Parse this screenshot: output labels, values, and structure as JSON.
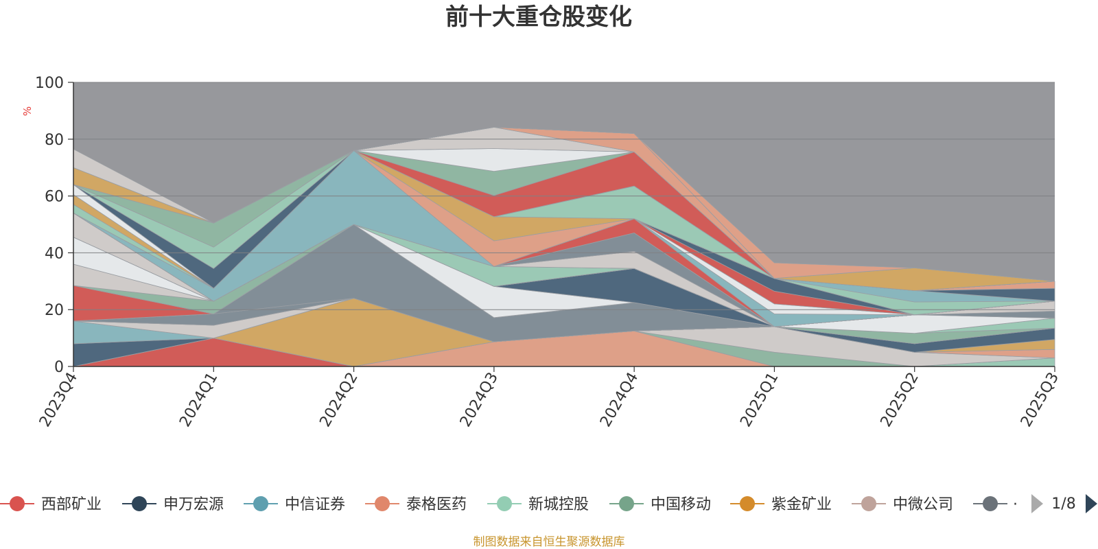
{
  "chart_data": {
    "type": "area",
    "stacked": true,
    "title": "前十大重仓股变化",
    "ylabel": "%",
    "ylim": [
      0,
      100
    ],
    "yticks": [
      0,
      20,
      40,
      60,
      80,
      100
    ],
    "grid": true,
    "legend_position": "bottom",
    "categories": [
      "2023Q4",
      "2024Q1",
      "2024Q2",
      "2024Q3",
      "2024Q4",
      "2025Q1",
      "2025Q2",
      "2025Q3"
    ],
    "series": [
      {
        "name": "西部矿业",
        "color": "#d9534f",
        "values": [
          0,
          10,
          0,
          0,
          0,
          0,
          0,
          0
        ]
      },
      {
        "name": "",
        "color": "#e8a085",
        "values": [
          0,
          0,
          0,
          8.7,
          12.5,
          0,
          0,
          0
        ]
      },
      {
        "name": "",
        "color": "#9ccfb8",
        "values": [
          0,
          0,
          0,
          0,
          0,
          0,
          0,
          3
        ]
      },
      {
        "name": "",
        "color": "#8fbaa3",
        "values": [
          0,
          0,
          0,
          0,
          0,
          5,
          0,
          0
        ]
      },
      {
        "name": "",
        "color": "#d7d1cf",
        "values": [
          0,
          0,
          0,
          0,
          0,
          9,
          5,
          0
        ]
      },
      {
        "name": "",
        "color": "#e8a085",
        "values": [
          0,
          0,
          0,
          0,
          0,
          0,
          0,
          3
        ]
      },
      {
        "name": "",
        "color": "#d9a85c",
        "values": [
          0,
          0,
          24,
          0,
          0,
          0,
          0,
          3.5
        ]
      },
      {
        "name": "",
        "color": "#46617a",
        "values": [
          8,
          0,
          0,
          0,
          0,
          0,
          3,
          4
        ]
      },
      {
        "name": "",
        "color": "#88b9c1",
        "values": [
          8,
          0,
          0,
          0,
          0,
          0,
          0,
          0
        ]
      },
      {
        "name": "",
        "color": "#8fbaa3",
        "values": [
          0,
          0,
          0,
          0,
          0,
          0,
          3.7,
          0
        ]
      },
      {
        "name": "",
        "color": "#9ccfb8",
        "values": [
          0,
          0,
          0,
          0,
          0,
          0,
          0,
          3.5
        ]
      },
      {
        "name": "",
        "color": "#d7d1cf",
        "values": [
          0,
          4.5,
          0,
          0,
          0,
          0,
          0,
          0
        ]
      },
      {
        "name": "",
        "color": "#f0f2f5",
        "values": [
          0,
          0,
          0,
          0,
          0,
          0,
          6.5,
          0
        ]
      },
      {
        "name": "",
        "color": "#7f8c96",
        "values": [
          0,
          4,
          0,
          0,
          0,
          0,
          0,
          2.5
        ]
      },
      {
        "name": "",
        "color": "#7f8c96",
        "values": [
          0,
          0,
          26,
          8.5,
          10,
          0,
          0,
          0
        ]
      },
      {
        "name": "",
        "color": "#d9534f",
        "values": [
          12.5,
          0,
          0,
          0,
          0,
          0,
          0,
          0
        ]
      },
      {
        "name": "",
        "color": "#e8a085",
        "values": [
          0,
          0,
          0,
          0,
          0,
          0,
          0,
          0
        ]
      },
      {
        "name": "",
        "color": "#d7d1cf",
        "values": [
          0,
          0,
          0,
          0,
          0,
          0,
          0,
          3.5
        ]
      },
      {
        "name": "",
        "color": "#f0f2f5",
        "values": [
          0,
          0,
          0,
          11,
          0,
          0,
          0,
          0
        ]
      },
      {
        "name": "",
        "color": "#46617a",
        "values": [
          0,
          0,
          0,
          0,
          12,
          0,
          0,
          0
        ]
      },
      {
        "name": "",
        "color": "#8fbaa3",
        "values": [
          0,
          4.5,
          0,
          0,
          0,
          0,
          0,
          0
        ]
      },
      {
        "name": "",
        "color": "#d7d1cf",
        "values": [
          7.5,
          0,
          0,
          0,
          0,
          0,
          0,
          0
        ]
      },
      {
        "name": "",
        "color": "#9ccfb8",
        "values": [
          0,
          0,
          0,
          7,
          0,
          0,
          0,
          0
        ]
      },
      {
        "name": "",
        "color": "#f0f2f5",
        "values": [
          9.5,
          0,
          0,
          0,
          0,
          0,
          0,
          0
        ]
      },
      {
        "name": "",
        "color": "#d7d1cf",
        "values": [
          0,
          0,
          0,
          0,
          6,
          0,
          0,
          0
        ]
      },
      {
        "name": "",
        "color": "#88b9c1",
        "values": [
          0,
          0,
          0,
          0,
          0,
          0,
          0,
          0
        ]
      },
      {
        "name": "",
        "color": "#7f8c96",
        "values": [
          0,
          0,
          0,
          0,
          6.5,
          0,
          0,
          0
        ]
      },
      {
        "name": "",
        "color": "#d9534f",
        "values": [
          0,
          0,
          0,
          0,
          5,
          0,
          0,
          0
        ]
      },
      {
        "name": "",
        "color": "#88b9c1",
        "values": [
          0,
          0,
          0,
          0,
          0,
          4.5,
          0,
          0
        ]
      },
      {
        "name": "",
        "color": "#d7d1cf",
        "values": [
          8.5,
          0,
          0,
          0,
          0,
          0,
          0,
          0
        ]
      },
      {
        "name": "",
        "color": "#f0f2f5",
        "values": [
          0,
          0,
          0,
          0,
          0,
          3.5,
          0,
          0
        ]
      },
      {
        "name": "",
        "color": "#d9534f",
        "values": [
          0,
          0,
          0,
          0,
          0,
          4.5,
          0,
          0
        ]
      },
      {
        "name": "",
        "color": "#46617a",
        "values": [
          0,
          0,
          0,
          0,
          0,
          4.5,
          0,
          0
        ]
      },
      {
        "name": "",
        "color": "#e8a085",
        "values": [
          0,
          0,
          0,
          0,
          0,
          0,
          0,
          0
        ]
      },
      {
        "name": "",
        "color": "#d9a85c",
        "values": [
          0,
          0,
          0,
          0,
          0,
          0,
          0,
          0
        ]
      },
      {
        "name": "",
        "color": "#9ccfb8",
        "values": [
          0,
          0,
          0,
          0,
          0,
          0,
          4.5,
          0
        ]
      },
      {
        "name": "",
        "color": "#88b9c1",
        "values": [
          0,
          0,
          0,
          0,
          0,
          0,
          4,
          0
        ]
      },
      {
        "name": "",
        "color": "#46617a",
        "values": [
          0,
          0,
          0,
          0,
          0,
          0,
          0,
          4.5
        ]
      },
      {
        "name": "",
        "color": "#e8a085",
        "values": [
          0,
          0,
          0,
          0,
          0,
          0,
          0,
          2.5
        ]
      },
      {
        "name": "",
        "color": "#d9a85c",
        "values": [
          0,
          0,
          0,
          0,
          0,
          0,
          0,
          0
        ]
      },
      {
        "name": "",
        "color": "#88b9c1",
        "values": [
          0,
          4.5,
          26,
          0,
          0,
          0,
          0,
          0
        ]
      },
      {
        "name": "",
        "color": "#e8a085",
        "values": [
          0,
          0,
          0,
          9,
          0,
          0,
          0,
          0
        ]
      },
      {
        "name": "",
        "color": "#d9a85c",
        "values": [
          0,
          0,
          0,
          8.5,
          0,
          0,
          0,
          0
        ]
      },
      {
        "name": "",
        "color": "#9ccfb8",
        "values": [
          3,
          0,
          0,
          0,
          11.5,
          0,
          0,
          0
        ]
      },
      {
        "name": "",
        "color": "#d9a85c",
        "values": [
          3.5,
          0,
          0,
          0,
          0,
          0,
          0,
          0
        ]
      },
      {
        "name": "",
        "color": "#f0f2f5",
        "values": [
          3.5,
          0,
          0,
          0,
          0,
          0,
          0,
          0
        ]
      },
      {
        "name": "",
        "color": "#46617a",
        "values": [
          0,
          7,
          0,
          0,
          0,
          0,
          0,
          0
        ]
      },
      {
        "name": "",
        "color": "#9ccfb8",
        "values": [
          0,
          7.5,
          0,
          0,
          0,
          0,
          0,
          0
        ]
      },
      {
        "name": "",
        "color": "#d9534f",
        "values": [
          0,
          0,
          0,
          7.5,
          12,
          0,
          0,
          0
        ]
      },
      {
        "name": "",
        "color": "#8fbaa3",
        "values": [
          0,
          8.5,
          0,
          8.5,
          0,
          0,
          0,
          0
        ]
      },
      {
        "name": "",
        "color": "#f0f2f5",
        "values": [
          0,
          0,
          0,
          8,
          0,
          0,
          0,
          0
        ]
      },
      {
        "name": "",
        "color": "#d7d1cf",
        "values": [
          0,
          0,
          0,
          7.5,
          0,
          0,
          0,
          0
        ]
      },
      {
        "name": "",
        "color": "#e8a085",
        "values": [
          0,
          0,
          0,
          0,
          6.5,
          0,
          0,
          0
        ]
      },
      {
        "name": "",
        "color": "#d9a85c",
        "values": [
          6,
          0,
          0,
          0,
          0,
          0,
          8,
          0
        ]
      },
      {
        "name": "",
        "color": "#88b9c1",
        "values": [
          0,
          0,
          0,
          0,
          0,
          0,
          0,
          0
        ]
      },
      {
        "name": "",
        "color": "#e8a085",
        "values": [
          0,
          0,
          0,
          0,
          0,
          5.5,
          0,
          0
        ]
      },
      {
        "name": "",
        "color": "#d7d1cf",
        "values": [
          6.5,
          0,
          0,
          0,
          0,
          0,
          0,
          0
        ]
      }
    ]
  },
  "legend": {
    "items": [
      {
        "name": "西部矿业",
        "color": "#d9534f"
      },
      {
        "name": "申万宏源",
        "color": "#2f4558"
      },
      {
        "name": "中信证券",
        "color": "#5f9faf"
      },
      {
        "name": "泰格医药",
        "color": "#e0876b"
      },
      {
        "name": "新城控股",
        "color": "#93cdb3"
      },
      {
        "name": "中国移动",
        "color": "#76a48a"
      },
      {
        "name": "紫金矿业",
        "color": "#d48b2b"
      },
      {
        "name": "中微公司",
        "color": "#bfa39b"
      },
      {
        "name": "",
        "color": "#6b7279",
        "partial": "·"
      }
    ],
    "page_label": "1/8"
  },
  "source": "制图数据来自恒生聚源数据库"
}
